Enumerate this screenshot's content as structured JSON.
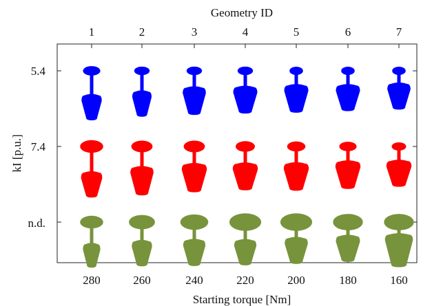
{
  "chart_data": {
    "type": "scatter",
    "top_axis_label": "Geometry ID",
    "top_tick_labels": [
      "1",
      "2",
      "3",
      "4",
      "5",
      "6",
      "7"
    ],
    "xlabel": "Starting torque [Nm]",
    "x_tick_labels": [
      "280",
      "260",
      "240",
      "220",
      "200",
      "180",
      "160"
    ],
    "ylabel": "kI [p.u.]",
    "y_tick_labels": [
      "5.4",
      "7.4",
      "n.d."
    ],
    "grid": false,
    "series": [
      {
        "color": "#0000ff",
        "shapes": [
          {
            "top_ellipse_w": 0.36,
            "bottom_w": 0.42,
            "bottom_len": 0.66,
            "stem_len": 0.55
          },
          {
            "top_ellipse_w": 0.32,
            "bottom_w": 0.4,
            "bottom_len": 0.66,
            "stem_len": 0.45
          },
          {
            "top_ellipse_w": 0.32,
            "bottom_w": 0.48,
            "bottom_len": 0.72,
            "stem_len": 0.32
          },
          {
            "top_ellipse_w": 0.32,
            "bottom_w": 0.5,
            "bottom_len": 0.7,
            "stem_len": 0.3
          },
          {
            "top_ellipse_w": 0.28,
            "bottom_w": 0.5,
            "bottom_len": 0.72,
            "stem_len": 0.25
          },
          {
            "top_ellipse_w": 0.28,
            "bottom_w": 0.5,
            "bottom_len": 0.68,
            "stem_len": 0.25
          },
          {
            "top_ellipse_w": 0.28,
            "bottom_w": 0.48,
            "bottom_len": 0.68,
            "stem_len": 0.2
          }
        ]
      },
      {
        "color": "#ff0000",
        "shapes": [
          {
            "top_ellipse_w": 0.48,
            "bottom_w": 0.44,
            "bottom_len": 0.66,
            "stem_len": 0.55
          },
          {
            "top_ellipse_w": 0.44,
            "bottom_w": 0.48,
            "bottom_len": 0.74,
            "stem_len": 0.4
          },
          {
            "top_ellipse_w": 0.44,
            "bottom_w": 0.52,
            "bottom_len": 0.74,
            "stem_len": 0.3
          },
          {
            "top_ellipse_w": 0.4,
            "bottom_w": 0.52,
            "bottom_len": 0.7,
            "stem_len": 0.3
          },
          {
            "top_ellipse_w": 0.38,
            "bottom_w": 0.52,
            "bottom_len": 0.72,
            "stem_len": 0.3
          },
          {
            "top_ellipse_w": 0.36,
            "bottom_w": 0.52,
            "bottom_len": 0.72,
            "stem_len": 0.25
          },
          {
            "top_ellipse_w": 0.3,
            "bottom_w": 0.52,
            "bottom_len": 0.68,
            "stem_len": 0.25
          }
        ]
      },
      {
        "color": "#77933c",
        "shapes": [
          {
            "top_ellipse_w": 0.48,
            "bottom_w": 0.36,
            "bottom_len": 0.62,
            "stem_len": 0.42
          },
          {
            "top_ellipse_w": 0.54,
            "bottom_w": 0.42,
            "bottom_len": 0.66,
            "stem_len": 0.3
          },
          {
            "top_ellipse_w": 0.58,
            "bottom_w": 0.46,
            "bottom_len": 0.68,
            "stem_len": 0.25
          },
          {
            "top_ellipse_w": 0.66,
            "bottom_w": 0.46,
            "bottom_len": 0.66,
            "stem_len": 0.22
          },
          {
            "top_ellipse_w": 0.66,
            "bottom_w": 0.48,
            "bottom_len": 0.68,
            "stem_len": 0.15
          },
          {
            "top_ellipse_w": 0.62,
            "bottom_w": 0.5,
            "bottom_len": 0.68,
            "stem_len": 0.1
          },
          {
            "top_ellipse_w": 0.62,
            "bottom_w": 0.58,
            "bottom_len": 0.86,
            "stem_len": 0.05
          }
        ]
      }
    ]
  }
}
